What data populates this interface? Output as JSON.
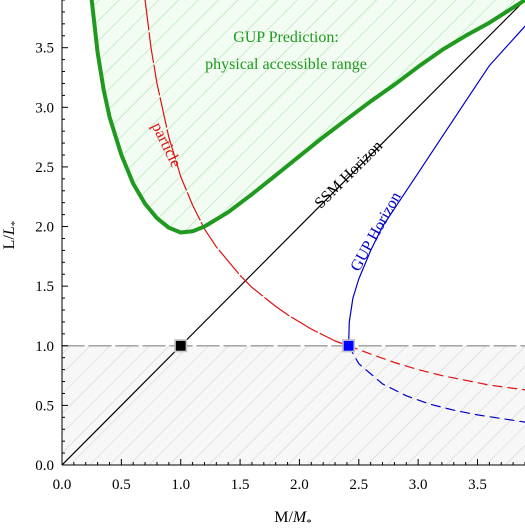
{
  "chart_data": {
    "type": "line",
    "xlabel": "M/",
    "xlabel_italic": "M",
    "xlabel_sub": "*",
    "ylabel": "L/",
    "ylabel_italic": "L",
    "ylabel_sub": "*",
    "xlim": [
      0,
      3.9
    ],
    "ylim": [
      0,
      3.9
    ],
    "xticks": [
      "0.0",
      "0.5",
      "1.0",
      "1.5",
      "2.0",
      "2.5",
      "3.0",
      "3.5"
    ],
    "yticks": [
      "0.0",
      "0.5",
      "1.0",
      "1.5",
      "2.0",
      "2.5",
      "3.0",
      "3.5"
    ],
    "grid": false,
    "annotations": {
      "gup_prediction_title": "GUP Prediction:",
      "gup_prediction_subtitle": "physical accessible range",
      "particle": "particle",
      "ssm_horizon": "SSM Horizon",
      "gup_horizon": "GUP Horizon"
    },
    "colors": {
      "gup_boundary": "#1f9a1f",
      "accessible_hatch": "#9de09d",
      "particle": "#e01010",
      "ssm_horizon": "#000000",
      "gup_horizon": "#0000cc",
      "planck_line": "#999999",
      "forbidden_hatch": "#cccccc"
    },
    "series": [
      {
        "key": "gup_boundary",
        "x": [
          0.25,
          0.3,
          0.35,
          0.4,
          0.5,
          0.6,
          0.7,
          0.8,
          0.9,
          1.0,
          1.1,
          1.2,
          1.4,
          1.6,
          1.8,
          2.0,
          2.2,
          2.4,
          2.6,
          2.8,
          3.0,
          3.2,
          3.4,
          3.6,
          3.9
        ],
        "y": [
          3.9,
          3.46,
          3.15,
          2.92,
          2.6,
          2.36,
          2.19,
          2.07,
          1.99,
          1.95,
          1.96,
          2.0,
          2.12,
          2.27,
          2.43,
          2.59,
          2.75,
          2.9,
          3.05,
          3.19,
          3.34,
          3.48,
          3.6,
          3.71,
          3.9
        ]
      },
      {
        "key": "particle",
        "x": [
          0.7,
          0.75,
          0.8,
          0.9,
          1.0,
          1.1,
          1.2,
          1.3,
          1.4,
          1.5,
          1.6,
          1.7,
          1.8,
          1.9,
          2.0,
          2.1,
          2.2,
          2.3,
          2.414
        ],
        "y": [
          3.9,
          3.5,
          3.2,
          2.75,
          2.42,
          2.18,
          1.98,
          1.83,
          1.71,
          1.59,
          1.49,
          1.41,
          1.33,
          1.26,
          1.2,
          1.14,
          1.09,
          1.04,
          1.0
        ]
      },
      {
        "key": "particle_dashed",
        "x": [
          2.414,
          2.6,
          2.8,
          3.0,
          3.2,
          3.4,
          3.6,
          3.9
        ],
        "y": [
          1.0,
          0.93,
          0.86,
          0.8,
          0.75,
          0.71,
          0.67,
          0.63
        ]
      },
      {
        "key": "ssm_horizon",
        "x": [
          0,
          3.9
        ],
        "y": [
          0,
          3.9
        ]
      },
      {
        "key": "gup_horizon",
        "x": [
          2.414,
          2.42,
          2.45,
          2.5,
          2.6,
          2.7,
          2.8,
          3.0,
          3.2,
          3.4,
          3.6,
          3.9
        ],
        "y": [
          1.0,
          1.2,
          1.4,
          1.56,
          1.8,
          2.0,
          2.15,
          2.45,
          2.75,
          3.05,
          3.35,
          3.68
        ]
      },
      {
        "key": "gup_horizon_dashed",
        "x": [
          2.414,
          2.5,
          2.7,
          2.9,
          3.1,
          3.3,
          3.5,
          3.7,
          3.9
        ],
        "y": [
          1.0,
          0.85,
          0.68,
          0.58,
          0.51,
          0.46,
          0.42,
          0.39,
          0.36
        ]
      },
      {
        "key": "planck_line",
        "x": [
          0,
          3.9
        ],
        "y": [
          1.0,
          1.0
        ]
      }
    ],
    "markers": [
      {
        "key": "planck_point",
        "x": 1.0,
        "y": 1.0,
        "color": "#000000"
      },
      {
        "key": "gup_remnant_point",
        "x": 2.414,
        "y": 1.0,
        "color": "#0000ff"
      }
    ]
  }
}
